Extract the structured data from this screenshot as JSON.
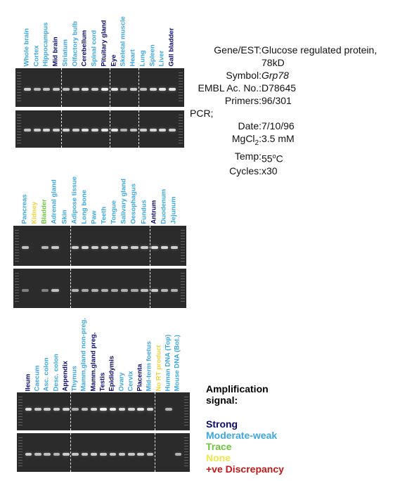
{
  "panels": [
    {
      "lanes": [
        {
          "label": "Whole brain",
          "color": "#3ba7dc",
          "top": 0.7,
          "bottom": 0.6
        },
        {
          "label": "Cortex",
          "color": "#3ba7dc",
          "top": 0.55,
          "bottom": 0.7
        },
        {
          "label": "Hippocampus",
          "color": "#3ba7dc",
          "top": 0.6,
          "bottom": 0.75
        },
        {
          "label": "Mid brain",
          "color": "#0a0a6e",
          "top": 0.65,
          "bottom": 0.7
        },
        {
          "label": "Striatum",
          "color": "#3ba7dc",
          "top": 0.6,
          "bottom": 0.75
        },
        {
          "label": "Olfactory bulb",
          "color": "#3ba7dc",
          "top": 0.65,
          "bottom": 0.7
        },
        {
          "label": "Cerebellum",
          "color": "#0a0a6e",
          "top": 0.8,
          "bottom": 0.8
        },
        {
          "label": "Spinal cord",
          "color": "#3ba7dc",
          "top": 0.7,
          "bottom": 0.75
        },
        {
          "label": "Pituitary gland",
          "color": "#0a0a6e",
          "top": 0.9,
          "bottom": 0.85
        },
        {
          "label": "Eye",
          "color": "#0a0a6e",
          "top": 0.85,
          "bottom": 0.85
        },
        {
          "label": "Skeletal muscle",
          "color": "#3ba7dc",
          "top": 0.45,
          "bottom": 0.5
        },
        {
          "label": "Heart",
          "color": "#3ba7dc",
          "top": 0.7,
          "bottom": 0.6
        },
        {
          "label": "Lung",
          "color": "#3ba7dc",
          "top": 0.6,
          "bottom": 0.7
        },
        {
          "label": "Spleen",
          "color": "#3ba7dc",
          "top": 0.75,
          "bottom": 0.75
        },
        {
          "label": "Liver",
          "color": "#3ba7dc",
          "top": 0.85,
          "bottom": 0.75
        },
        {
          "label": "Gall bladder",
          "color": "#0a0a6e",
          "top": 0.85,
          "bottom": 0.7
        }
      ]
    },
    {
      "lanes": [
        {
          "label": "Pancreas",
          "color": "#3ba7dc",
          "top": 0.6,
          "bottom": 0.2
        },
        {
          "label": "Kidney",
          "color": "#f2d23a",
          "top": 0.0,
          "bottom": 0.0
        },
        {
          "label": "Bladder",
          "color": "#6ec43a",
          "top": 0.55,
          "bottom": 0.2
        },
        {
          "label": "Adrenal gland",
          "color": "#3ba7dc",
          "top": 0.65,
          "bottom": 0.6
        },
        {
          "label": "Skin",
          "color": "#3ba7dc",
          "top": 0.0,
          "bottom": 0.0
        },
        {
          "label": "Adipose tissue",
          "color": "#3ba7dc",
          "top": 0.7,
          "bottom": 0.55
        },
        {
          "label": "Long bone",
          "color": "#3ba7dc",
          "top": 0.75,
          "bottom": 0.45
        },
        {
          "label": "Paw",
          "color": "#3ba7dc",
          "top": 0.7,
          "bottom": 0.5
        },
        {
          "label": "Teeth",
          "color": "#3ba7dc",
          "top": 0.7,
          "bottom": 0.5
        },
        {
          "label": "Tongue",
          "color": "#3ba7dc",
          "top": 0.65,
          "bottom": 0.45
        },
        {
          "label": "Salivary gland",
          "color": "#3ba7dc",
          "top": 0.7,
          "bottom": 0.5
        },
        {
          "label": "Oesophagus",
          "color": "#3ba7dc",
          "top": 0.7,
          "bottom": 0.45
        },
        {
          "label": "Fundus",
          "color": "#3ba7dc",
          "top": 0.7,
          "bottom": 0.6
        },
        {
          "label": "Antrum",
          "color": "#0a0a6e",
          "top": 0.8,
          "bottom": 0.7
        },
        {
          "label": "Duodenum",
          "color": "#3ba7dc",
          "top": 0.75,
          "bottom": 0.55
        },
        {
          "label": "Jejunum",
          "color": "#3ba7dc",
          "top": 0.7,
          "bottom": 0.5
        }
      ]
    },
    {
      "lanes": [
        {
          "label": "Ileum",
          "color": "#0a0a6e",
          "top": 0.8,
          "bottom": 0.7
        },
        {
          "label": "Caecum",
          "color": "#3ba7dc",
          "top": 0.65,
          "bottom": 0.6
        },
        {
          "label": "Asc. colon",
          "color": "#3ba7dc",
          "top": 0.7,
          "bottom": 0.6
        },
        {
          "label": "Desc. colon",
          "color": "#3ba7dc",
          "top": 0.7,
          "bottom": 0.55
        },
        {
          "label": "Appendix",
          "color": "#0a0a6e",
          "top": 0.75,
          "bottom": 0.7
        },
        {
          "label": "Thymus",
          "color": "#3ba7dc",
          "top": 0.5,
          "bottom": 0.65
        },
        {
          "label": "Mamm.gland non-preg.",
          "color": "#3ba7dc",
          "top": 0.6,
          "bottom": 0.65
        },
        {
          "label": "Mamm.gland preg.",
          "color": "#0a0a6e",
          "top": 0.75,
          "bottom": 0.7
        },
        {
          "label": "Testis",
          "color": "#0a0a6e",
          "top": 0.9,
          "bottom": 0.65
        },
        {
          "label": "Epididymis",
          "color": "#0a0a6e",
          "top": 0.85,
          "bottom": 0.65
        },
        {
          "label": "Ovary",
          "color": "#3ba7dc",
          "top": 0.75,
          "bottom": 0.65
        },
        {
          "label": "Cervix",
          "color": "#3ba7dc",
          "top": 0.75,
          "bottom": 0.65
        },
        {
          "label": "Placenta",
          "color": "#0a0a6e",
          "top": 0.85,
          "bottom": 0.7
        },
        {
          "label": "Mid-term foetus",
          "color": "#3ba7dc",
          "top": 0.75,
          "bottom": 0.6
        },
        {
          "label": "No RT product",
          "color": "#f2d23a",
          "top": 0.0,
          "bottom": 0.0
        },
        {
          "label": "Human DNA (Top)",
          "color": "#3ba7dc",
          "top": 0.55,
          "bottom": 0.0
        },
        {
          "label": "Mouse DNA (Bot.)",
          "color": "#3ba7dc",
          "top": 0.0,
          "bottom": 0.5
        }
      ]
    }
  ],
  "info": {
    "gene_key": "Gene/EST:",
    "gene_value_line1": "Glucose regulated protein,",
    "gene_value_line2": "78kD",
    "symbol_key": "Symbol:",
    "symbol_value": "Grp78",
    "embl_key": "EMBL Ac. No.:",
    "embl_value": "D78645",
    "primers_key": "Primers:",
    "primers_value": "96/301",
    "pcr_label": "PCR;",
    "date_key": "Date:",
    "date_value": "7/10/96",
    "mgcl_key": "MgCl",
    "mgcl_sub": "2",
    "mgcl_value": "3.5 mM",
    "temp_key": "Temp:",
    "temp_value": "55",
    "temp_sup": "o",
    "temp_unit": "C",
    "cycles_key": "Cycles:",
    "cycles_value": "x30"
  },
  "legend": {
    "title_line1": "Amplification",
    "title_line2": "signal:",
    "items": [
      {
        "label": "Strong",
        "color": "#0a0a6e"
      },
      {
        "label": "Moderate-weak",
        "color": "#3ba7dc"
      },
      {
        "label": "Trace",
        "color": "#6ec43a"
      },
      {
        "label": "None",
        "color": "#f2e64a"
      },
      {
        "label": "+ve Discrepancy",
        "color": "#c01818"
      }
    ]
  }
}
